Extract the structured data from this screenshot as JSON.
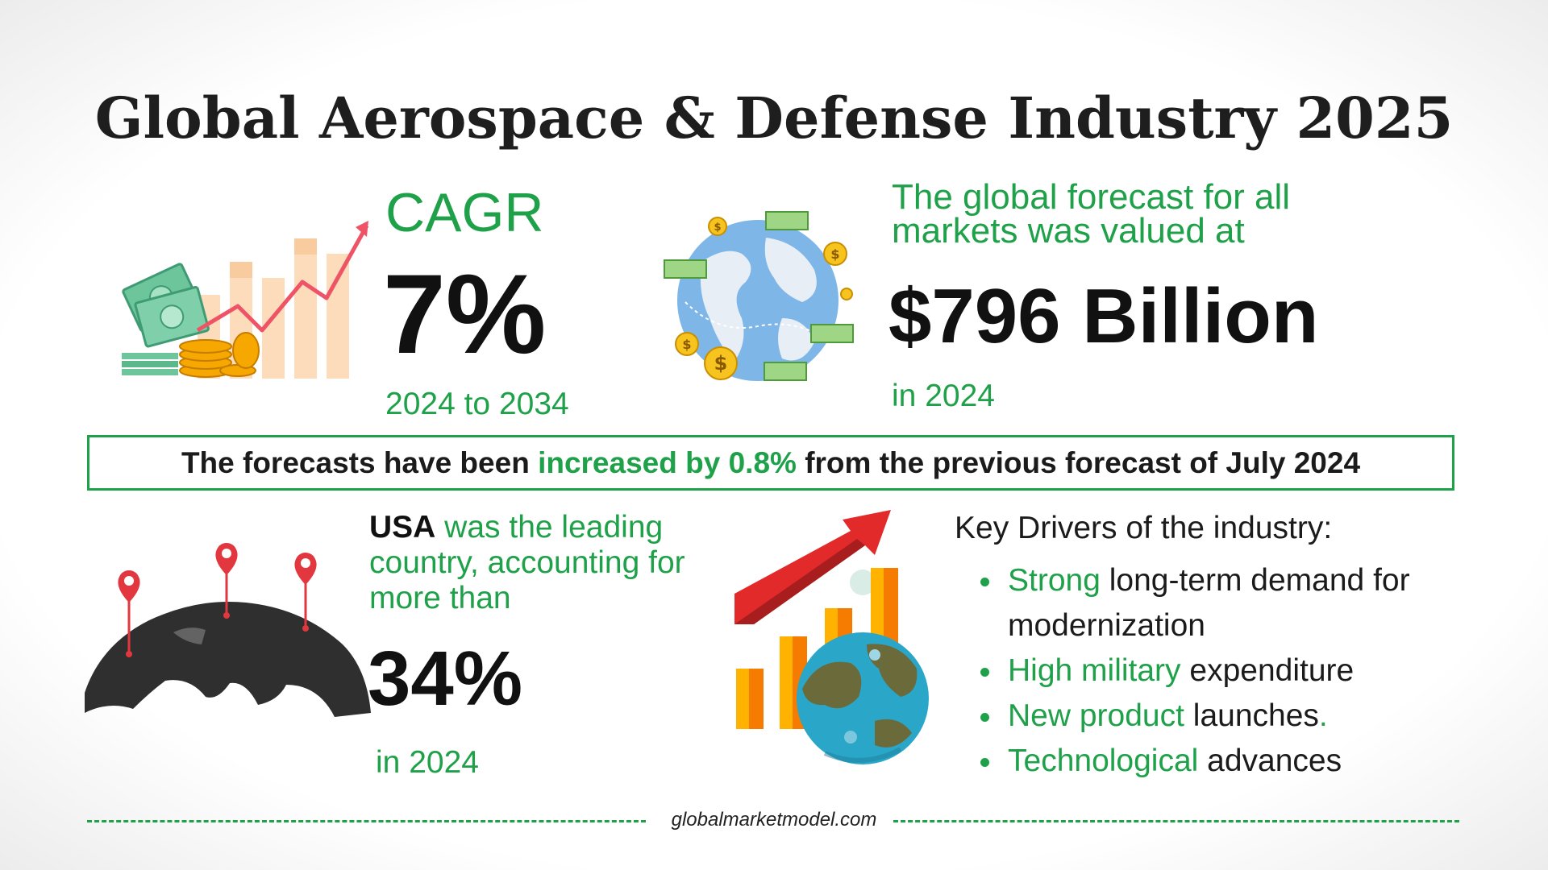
{
  "title": "Global Aerospace & Defense Industry 2025",
  "cagr": {
    "label": "CAGR",
    "value": "7%",
    "period": "2024 to 2034"
  },
  "forecast": {
    "text": "The global forecast for all markets was valued at",
    "value": "$796 Billion",
    "year": "in 2024"
  },
  "banner": {
    "part1": "The forecasts have been ",
    "highlight": "increased by 0.8%",
    "part2": " from the previous forecast of July 2024"
  },
  "usa": {
    "country": "USA",
    "text": " was the leading country, accounting for more than",
    "value": "34%",
    "year": "in 2024"
  },
  "drivers": {
    "heading": "Key Drivers of the industry:",
    "items": [
      {
        "highlight": "Strong",
        "rest": " long-term demand for modernization",
        "tail": ""
      },
      {
        "highlight": "High military",
        "rest": " expenditure",
        "tail": ""
      },
      {
        "highlight": "New product",
        "rest": " launches",
        "tail": "."
      },
      {
        "highlight": "Technological",
        "rest": " advances",
        "tail": ""
      }
    ]
  },
  "footer": {
    "website": "globalmarketmodel.com"
  },
  "colors": {
    "accent": "#1fa14a",
    "text": "#111111",
    "arrow": "#e03a3a"
  },
  "icons": [
    "money-growth-chart-icon",
    "globe-money-icon",
    "world-map-pins-icon",
    "globe-growth-chart-icon"
  ]
}
